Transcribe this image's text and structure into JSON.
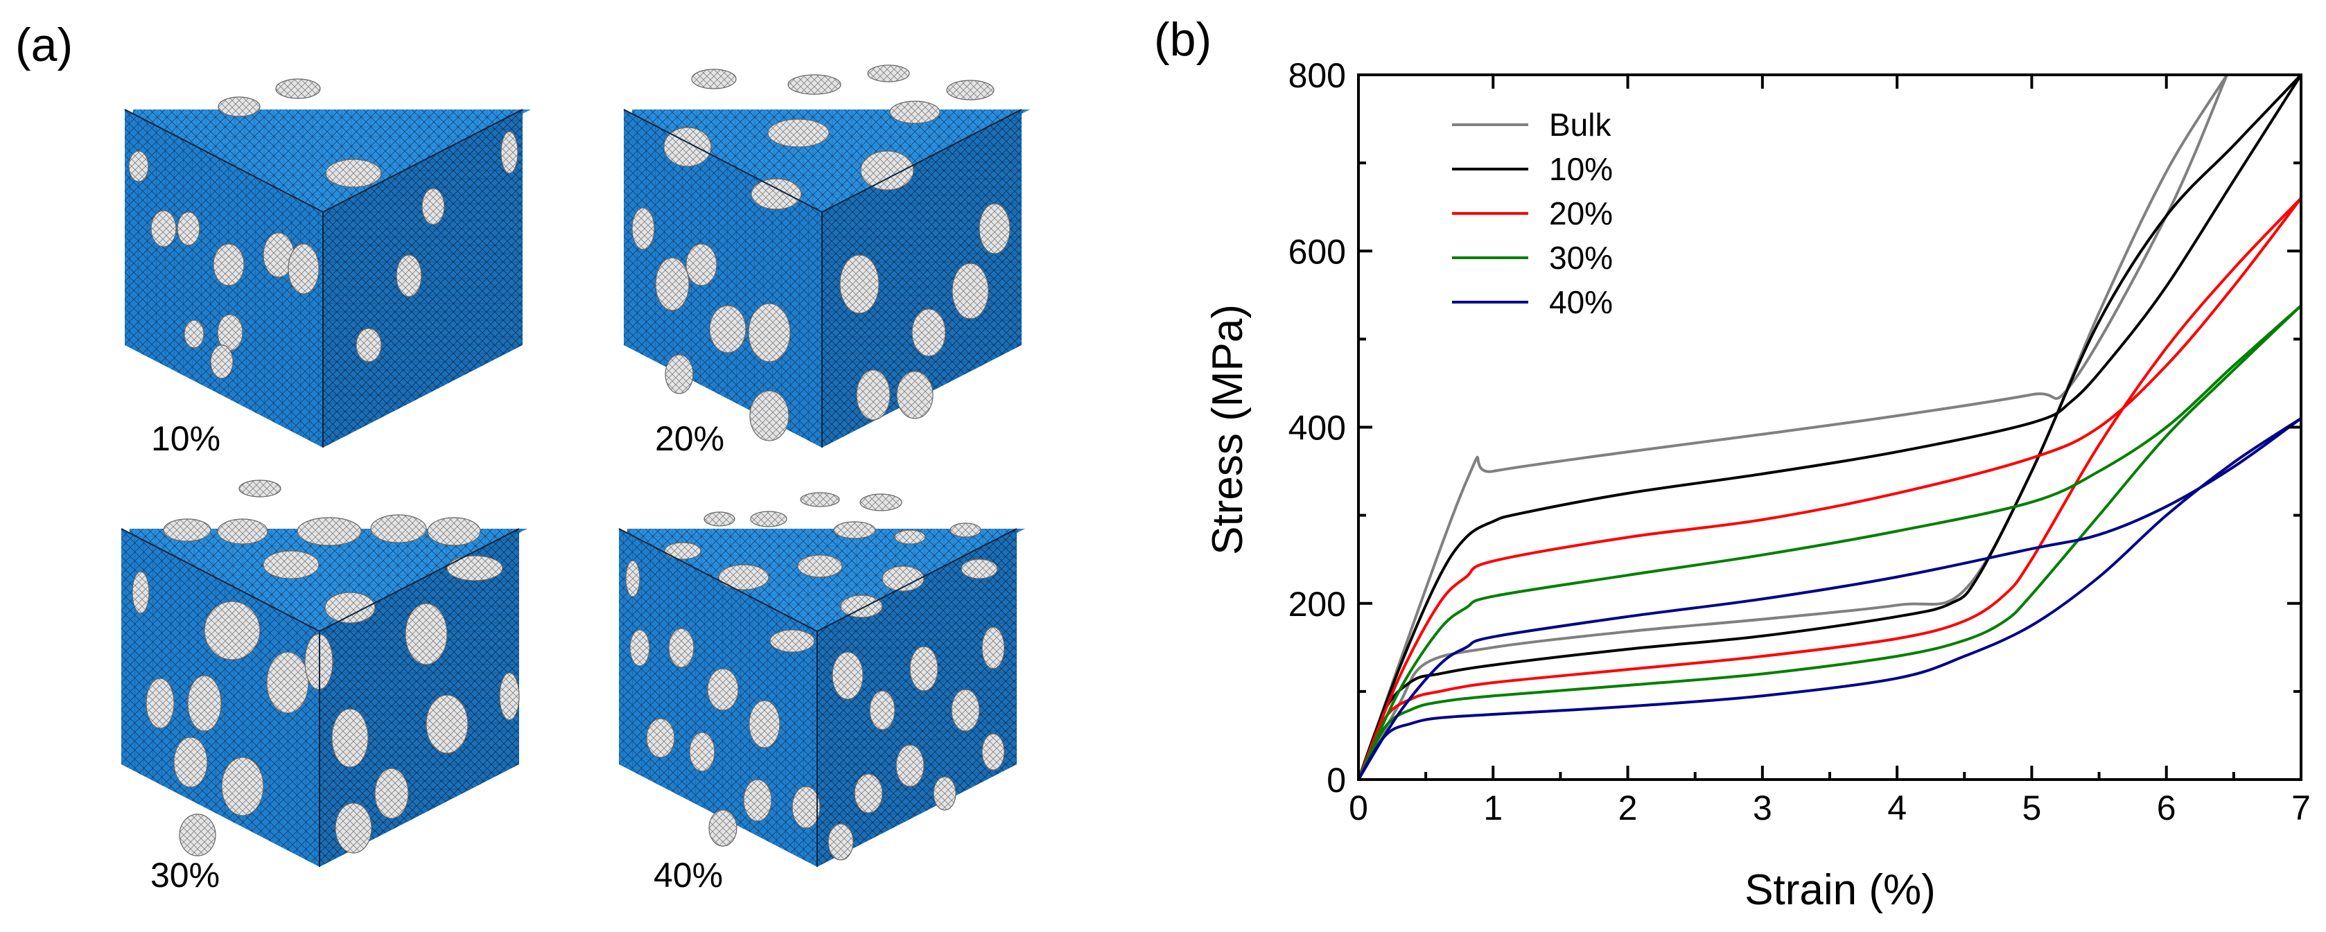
{
  "panel_a": {
    "label": "(a)",
    "cubes": [
      {
        "label": "10%"
      },
      {
        "label": "20%"
      },
      {
        "label": "30%"
      },
      {
        "label": "40%"
      }
    ],
    "colors": {
      "matrix": "#1f7fcf",
      "particle": "#e4e4e4",
      "mesh": "#0d2f55"
    }
  },
  "panel_b": {
    "label": "(b)"
  },
  "chart_data": {
    "type": "line",
    "title": "",
    "xlabel": "Strain (%)",
    "ylabel": "Stress (MPa)",
    "xlim": [
      0,
      7
    ],
    "ylim": [
      0,
      800
    ],
    "xticks": [
      "0",
      "1",
      "2",
      "3",
      "4",
      "5",
      "6",
      "7"
    ],
    "yticks": [
      "0",
      "200",
      "400",
      "600",
      "800"
    ],
    "legend_position": "top-left",
    "series": [
      {
        "name": "Bulk",
        "color": "#808080",
        "upper": {
          "x": [
            0,
            0.8,
            1.0,
            2,
            3,
            4,
            5,
            5.3,
            6.0,
            6.45
          ],
          "y": [
            0,
            338,
            350,
            372,
            392,
            413,
            437,
            450,
            640,
            800
          ]
        },
        "lower": {
          "x": [
            0,
            0.3,
            0.5,
            1,
            2,
            3,
            4,
            4.5,
            5.0,
            5.5,
            6.0,
            6.45
          ],
          "y": [
            0,
            85,
            132,
            150,
            168,
            182,
            198,
            215,
            350,
            530,
            690,
            800
          ]
        }
      },
      {
        "name": "10%",
        "color": "#000000",
        "upper": {
          "x": [
            0,
            0.3,
            0.6,
            0.8,
            1.0,
            1.2,
            2,
            3,
            4,
            5,
            5.3,
            5.6,
            6.0,
            6.5,
            7.0
          ],
          "y": [
            0,
            125,
            230,
            275,
            293,
            302,
            325,
            347,
            372,
            405,
            430,
            480,
            560,
            680,
            800
          ]
        },
        "lower": {
          "x": [
            0,
            0.2,
            0.4,
            0.6,
            1,
            2,
            3,
            4,
            4.4,
            4.6,
            5.0,
            5.5,
            6.0,
            6.5,
            7.0
          ],
          "y": [
            0,
            80,
            112,
            120,
            130,
            148,
            163,
            185,
            200,
            230,
            350,
            520,
            640,
            720,
            800
          ]
        }
      },
      {
        "name": "20%",
        "color": "#ff0000",
        "upper": {
          "x": [
            0,
            0.3,
            0.6,
            0.8,
            1.0,
            2,
            3,
            4,
            5,
            5.5,
            6.0,
            6.5,
            7.0
          ],
          "y": [
            0,
            115,
            200,
            230,
            248,
            275,
            295,
            325,
            365,
            400,
            470,
            560,
            660
          ]
        },
        "lower": {
          "x": [
            0,
            0.2,
            0.4,
            0.6,
            1,
            2,
            3,
            4,
            4.5,
            4.8,
            5.0,
            5.5,
            6.0,
            6.5,
            7.0
          ],
          "y": [
            0,
            70,
            92,
            100,
            110,
            125,
            140,
            160,
            180,
            210,
            250,
            380,
            490,
            580,
            660
          ]
        }
      },
      {
        "name": "30%",
        "color": "#008000",
        "upper": {
          "x": [
            0,
            0.3,
            0.6,
            0.8,
            1.0,
            2,
            3,
            4,
            5,
            5.5,
            6.0,
            6.5,
            7.0
          ],
          "y": [
            0,
            100,
            170,
            195,
            208,
            232,
            255,
            282,
            315,
            350,
            400,
            470,
            538
          ]
        },
        "lower": {
          "x": [
            0,
            0.2,
            0.4,
            0.6,
            1,
            2,
            3,
            4,
            4.5,
            4.8,
            5.0,
            5.5,
            6.0,
            6.5,
            7.0
          ],
          "y": [
            0,
            60,
            80,
            88,
            95,
            107,
            120,
            140,
            158,
            180,
            210,
            300,
            390,
            465,
            538
          ]
        }
      },
      {
        "name": "40%",
        "color": "#00008b",
        "upper": {
          "x": [
            0,
            0.3,
            0.6,
            0.8,
            1.0,
            2,
            3,
            4,
            5,
            5.5,
            6.0,
            6.5,
            7.0
          ],
          "y": [
            0,
            75,
            130,
            150,
            162,
            185,
            205,
            230,
            262,
            278,
            310,
            355,
            410
          ]
        },
        "lower": {
          "x": [
            0,
            0.2,
            0.4,
            0.6,
            1,
            2,
            3,
            4,
            4.5,
            5.0,
            5.5,
            6.0,
            6.5,
            7.0
          ],
          "y": [
            0,
            50,
            64,
            70,
            74,
            83,
            95,
            115,
            140,
            175,
            230,
            300,
            360,
            410
          ]
        }
      }
    ]
  }
}
